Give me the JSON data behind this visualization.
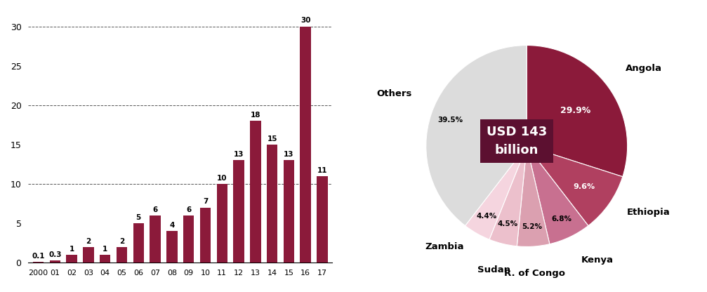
{
  "bar_years": [
    "2000",
    "01",
    "02",
    "03",
    "04",
    "05",
    "06",
    "07",
    "08",
    "09",
    "10",
    "11",
    "12",
    "13",
    "14",
    "15",
    "16",
    "17"
  ],
  "bar_values": [
    0.1,
    0.3,
    1,
    2,
    1,
    2,
    5,
    6,
    4,
    6,
    7,
    10,
    13,
    18,
    15,
    13,
    30,
    11
  ],
  "bar_color": "#8B1A3A",
  "bar_labels": [
    "0.1",
    "0.3",
    "1",
    "2",
    "1",
    "2",
    "5",
    "6",
    "4",
    "6",
    "7",
    "10",
    "13",
    "18",
    "15",
    "13",
    "30",
    "11"
  ],
  "ytick_labels": [
    "0",
    "5",
    "10",
    "15",
    "20",
    "25",
    "30"
  ],
  "ytick_vals": [
    0,
    5,
    10,
    15,
    20,
    25,
    30
  ],
  "grid_lines": [
    10,
    20,
    30
  ],
  "pie_labels": [
    "Angola",
    "Ethiopia",
    "Kenya",
    "R. of Congo",
    "Sudan",
    "Zambia",
    "Others"
  ],
  "pie_values": [
    29.9,
    9.6,
    6.8,
    5.2,
    4.5,
    4.4,
    39.5
  ],
  "pie_pct_labels": [
    "29.9%",
    "9.6%",
    "6.8%",
    "5.2%",
    "4.5%",
    "4.4%",
    "39.5%"
  ],
  "pie_colors": [
    "#8B1A3A",
    "#B04060",
    "#C87090",
    "#DBA0B0",
    "#ECC0CC",
    "#F5D5DF",
    "#DCDCDC"
  ],
  "pie_startangle": 90,
  "pie_center_text": "USD 143\nbillion",
  "pie_center_bg": "#5C1030"
}
